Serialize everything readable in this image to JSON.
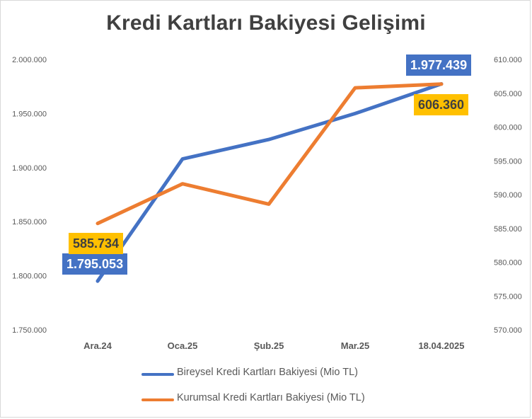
{
  "chart_data": {
    "type": "line",
    "title": "Kredi Kartları Bakiyesi Gelişimi",
    "categories": [
      "Ara.24",
      "Oca.25",
      "Şub.25",
      "Mar.25",
      "18.04.2025"
    ],
    "series": [
      {
        "name": "Bireysel Kredi Kartları Bakiyesi (Mio TL)",
        "axis": "left",
        "color": "#4472c4",
        "values": [
          1795053,
          1908000,
          1926000,
          1950000,
          1977439
        ]
      },
      {
        "name": "Kurumsal Kredi Kartları Bakiyesi (Mio TL)",
        "axis": "right",
        "color": "#ed7d31",
        "values": [
          585734,
          591600,
          588600,
          605800,
          606360
        ]
      }
    ],
    "y_left": {
      "ylim": [
        1750000,
        2000000
      ],
      "ticks": [
        "2.000.000",
        "1.950.000",
        "1.900.000",
        "1.850.000",
        "1.800.000",
        "1.750.000"
      ]
    },
    "y_right": {
      "ylim": [
        570000,
        610000
      ],
      "ticks": [
        "610.000",
        "605.000",
        "600.000",
        "595.000",
        "590.000",
        "585.000",
        "580.000",
        "575.000",
        "570.000"
      ]
    },
    "data_labels": [
      {
        "series": 0,
        "point": 0,
        "text": "1.795.053",
        "bg": "#4472c4",
        "fg": "#ffffff"
      },
      {
        "series": 0,
        "point": 4,
        "text": "1.977.439",
        "bg": "#4472c4",
        "fg": "#ffffff"
      },
      {
        "series": 1,
        "point": 0,
        "text": "585.734",
        "bg": "#ffc000",
        "fg": "#404040"
      },
      {
        "series": 1,
        "point": 4,
        "text": "606.360",
        "bg": "#ffc000",
        "fg": "#404040"
      }
    ],
    "grid": false,
    "legend_position": "bottom"
  }
}
